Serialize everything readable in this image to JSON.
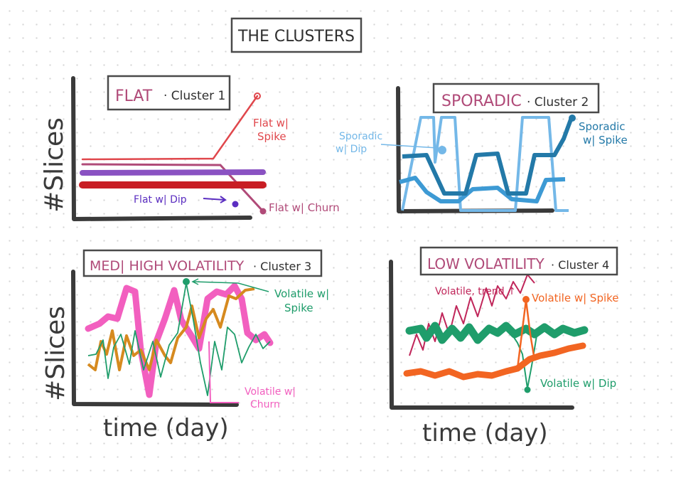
{
  "title": "THE CLUSTERS",
  "colors": {
    "axis": "#3a3a3a",
    "box_border": "#4a4a4a",
    "title_magenta": "#b04a78",
    "dark_text": "#2f2f2f"
  },
  "panels": [
    {
      "id": "cluster1",
      "heading_keyword": "FLAT",
      "heading_cluster": "· Cluster 1",
      "y_label": "#Slices",
      "x_label": "",
      "annotations": [
        {
          "id": "flat-spike",
          "lines": [
            "Flat w|",
            "Spike"
          ],
          "color": "#e0474c"
        },
        {
          "id": "flat-dip",
          "lines": [
            "Flat w| Dip"
          ],
          "color": "#5b2ec1"
        },
        {
          "id": "flat-churn",
          "lines": [
            "Flat w| Churn"
          ],
          "color": "#b04a78"
        }
      ]
    },
    {
      "id": "cluster2",
      "heading_keyword": "SPORADIC",
      "heading_cluster": "· Cluster 2",
      "y_label": "",
      "x_label": "",
      "annotations": [
        {
          "id": "sporadic-dip",
          "lines": [
            "Sporadic",
            "w| Dip"
          ],
          "color": "#74b8e8"
        },
        {
          "id": "sporadic-spike",
          "lines": [
            "Sporadic",
            "w| Spike"
          ],
          "color": "#2379a8"
        }
      ]
    },
    {
      "id": "cluster3",
      "heading_keyword": "MED| HIGH VOLATILITY",
      "heading_cluster": "· Cluster 3",
      "y_label": "#Slices",
      "x_label": "time (day)",
      "annotations": [
        {
          "id": "volatile-spike-c3",
          "lines": [
            "Volatile w|",
            "Spike"
          ],
          "color": "#1f9d6b"
        },
        {
          "id": "volatile-churn",
          "lines": [
            "Volatile w|",
            "Churn"
          ],
          "color": "#f25fbf"
        }
      ]
    },
    {
      "id": "cluster4",
      "heading_keyword": "LOW VOLATILITY",
      "heading_cluster": "· Cluster 4",
      "y_label": "",
      "x_label": "time (day)",
      "annotations": [
        {
          "id": "volatile-trend",
          "lines": [
            "Volatile, trend ↑"
          ],
          "color": "#c0265a"
        },
        {
          "id": "volatile-spike-c4",
          "lines": [
            "Volatile w| Spike"
          ],
          "color": "#f26522"
        },
        {
          "id": "volatile-dip",
          "lines": [
            "Volatile w| Dip"
          ],
          "color": "#1f9d6b"
        }
      ]
    }
  ]
}
